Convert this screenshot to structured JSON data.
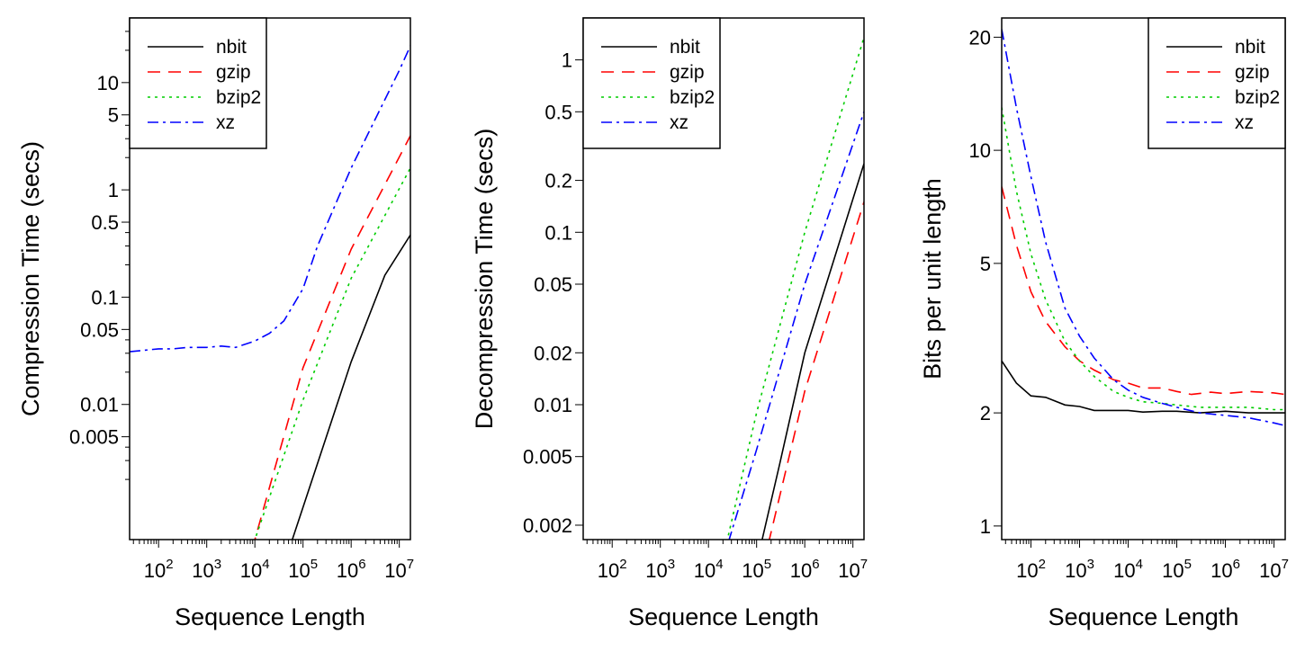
{
  "chart_data": [
    {
      "type": "line",
      "xlabel": "Sequence Length",
      "ylabel": "Compression Time (secs)",
      "x_scale": "log",
      "y_scale": "log",
      "xlim": [
        25,
        17000000
      ],
      "ylim": [
        0.00055,
        40
      ],
      "x_ticks": [
        {
          "v": 100,
          "b": "10",
          "e": "2"
        },
        {
          "v": 1000,
          "b": "10",
          "e": "3"
        },
        {
          "v": 10000,
          "b": "10",
          "e": "4"
        },
        {
          "v": 100000,
          "b": "10",
          "e": "5"
        },
        {
          "v": 1000000,
          "b": "10",
          "e": "6"
        },
        {
          "v": 10000000,
          "b": "10",
          "e": "7"
        }
      ],
      "y_ticks": [
        {
          "v": 0.005,
          "label": "0.005"
        },
        {
          "v": 0.01,
          "label": "0.01"
        },
        {
          "v": 0.05,
          "label": "0.05"
        },
        {
          "v": 0.1,
          "label": "0.1"
        },
        {
          "v": 0.5,
          "label": "0.5"
        },
        {
          "v": 1,
          "label": "1"
        },
        {
          "v": 5,
          "label": "5"
        },
        {
          "v": 10,
          "label": "10"
        }
      ],
      "y_minor_ticks": [
        0.002,
        0.003,
        0.004,
        0.02,
        0.03,
        0.04,
        0.2,
        0.3,
        0.4,
        2,
        3,
        4,
        20,
        30
      ],
      "legend": {
        "position": "top-left"
      },
      "series": [
        {
          "name": "nbit",
          "color": "#000000",
          "dash": "",
          "x": [
            25,
            60000,
            1000000,
            5000000,
            17000000
          ],
          "y": [
            0.0001,
            0.00055,
            0.025,
            0.16,
            0.38
          ]
        },
        {
          "name": "gzip",
          "color": "#ff0000",
          "dash": "14 9",
          "x": [
            8000,
            10000,
            100000,
            1000000,
            17000000
          ],
          "y": [
            0.00045,
            0.00055,
            0.022,
            0.28,
            3.2
          ]
        },
        {
          "name": "bzip2",
          "color": "#00cd00",
          "dash": "3 5",
          "x": [
            8000,
            10000,
            100000,
            1000000,
            17000000
          ],
          "y": [
            0.00045,
            0.00055,
            0.011,
            0.15,
            1.6
          ]
        },
        {
          "name": "xz",
          "color": "#0000ff",
          "dash": "12 5 3 5",
          "x": [
            25,
            50,
            100,
            200,
            400,
            1000,
            2000,
            4000,
            10000,
            20000,
            40000,
            100000,
            200000,
            1000000,
            10000000,
            17000000
          ],
          "y": [
            0.031,
            0.032,
            0.033,
            0.033,
            0.034,
            0.034,
            0.035,
            0.034,
            0.039,
            0.046,
            0.06,
            0.12,
            0.3,
            1.6,
            13,
            22
          ]
        }
      ]
    },
    {
      "type": "line",
      "xlabel": "Sequence Length",
      "ylabel": "Decompression Time (secs)",
      "x_scale": "log",
      "y_scale": "log",
      "xlim": [
        25,
        17000000
      ],
      "ylim": [
        0.00165,
        1.75
      ],
      "x_ticks": [
        {
          "v": 100,
          "b": "10",
          "e": "2"
        },
        {
          "v": 1000,
          "b": "10",
          "e": "3"
        },
        {
          "v": 10000,
          "b": "10",
          "e": "4"
        },
        {
          "v": 100000,
          "b": "10",
          "e": "5"
        },
        {
          "v": 1000000,
          "b": "10",
          "e": "6"
        },
        {
          "v": 10000000,
          "b": "10",
          "e": "7"
        }
      ],
      "y_ticks": [
        {
          "v": 0.002,
          "label": "0.002"
        },
        {
          "v": 0.005,
          "label": "0.005"
        },
        {
          "v": 0.01,
          "label": "0.01"
        },
        {
          "v": 0.02,
          "label": "0.02"
        },
        {
          "v": 0.05,
          "label": "0.05"
        },
        {
          "v": 0.1,
          "label": "0.1"
        },
        {
          "v": 0.2,
          "label": "0.2"
        },
        {
          "v": 0.5,
          "label": "0.5"
        },
        {
          "v": 1,
          "label": "1"
        }
      ],
      "y_minor_ticks": [],
      "legend": {
        "position": "top-left"
      },
      "series": [
        {
          "name": "nbit",
          "color": "#000000",
          "dash": "",
          "x": [
            100000,
            300000,
            1000000,
            17000000
          ],
          "y": [
            0.0012,
            0.0045,
            0.02,
            0.25
          ]
        },
        {
          "name": "gzip",
          "color": "#ff0000",
          "dash": "14 9",
          "x": [
            140000,
            1000000,
            17000000
          ],
          "y": [
            0.0012,
            0.012,
            0.15
          ]
        },
        {
          "name": "bzip2",
          "color": "#00cd00",
          "dash": "3 5",
          "x": [
            19000,
            100000,
            1000000,
            17000000
          ],
          "y": [
            0.0012,
            0.009,
            0.1,
            1.35
          ]
        },
        {
          "name": "xz",
          "color": "#0000ff",
          "dash": "12 5 3 5",
          "x": [
            19000,
            100000,
            1000000,
            17000000
          ],
          "y": [
            0.0012,
            0.0055,
            0.05,
            0.5
          ]
        }
      ]
    },
    {
      "type": "line",
      "xlabel": "Sequence Length",
      "ylabel": "Bits per unit length",
      "x_scale": "log",
      "y_scale": "log",
      "xlim": [
        25,
        17000000
      ],
      "ylim": [
        0.92,
        22.5
      ],
      "x_ticks": [
        {
          "v": 100,
          "b": "10",
          "e": "2"
        },
        {
          "v": 1000,
          "b": "10",
          "e": "3"
        },
        {
          "v": 10000,
          "b": "10",
          "e": "4"
        },
        {
          "v": 100000,
          "b": "10",
          "e": "5"
        },
        {
          "v": 1000000,
          "b": "10",
          "e": "6"
        },
        {
          "v": 10000000,
          "b": "10",
          "e": "7"
        }
      ],
      "y_ticks": [
        {
          "v": 1,
          "label": "1"
        },
        {
          "v": 2,
          "label": "2"
        },
        {
          "v": 5,
          "label": "5"
        },
        {
          "v": 10,
          "label": "10"
        },
        {
          "v": 20,
          "label": "20"
        }
      ],
      "y_minor_ticks": [],
      "legend": {
        "position": "top-right"
      },
      "series": [
        {
          "name": "nbit",
          "color": "#000000",
          "dash": "",
          "x": [
            25,
            50,
            100,
            200,
            500,
            1000,
            2000,
            5000,
            10000,
            20000,
            50000,
            100000,
            300000,
            1000000,
            3000000,
            10000000,
            17000000
          ],
          "y": [
            2.75,
            2.4,
            2.22,
            2.2,
            2.1,
            2.08,
            2.03,
            2.03,
            2.03,
            2.01,
            2.02,
            2.02,
            2.0,
            2.02,
            2.0,
            2.0,
            2.0
          ]
        },
        {
          "name": "gzip",
          "color": "#ff0000",
          "dash": "14 9",
          "x": [
            25,
            50,
            100,
            200,
            500,
            1000,
            2000,
            5000,
            10000,
            20000,
            50000,
            100000,
            200000,
            500000,
            1000000,
            3000000,
            10000000,
            17000000
          ],
          "y": [
            8.0,
            5.6,
            4.2,
            3.5,
            3.0,
            2.75,
            2.6,
            2.45,
            2.4,
            2.33,
            2.33,
            2.28,
            2.24,
            2.27,
            2.25,
            2.28,
            2.26,
            2.24
          ]
        },
        {
          "name": "bzip2",
          "color": "#00cd00",
          "dash": "3 5",
          "x": [
            25,
            50,
            100,
            200,
            500,
            1000,
            2000,
            5000,
            10000,
            20000,
            50000,
            100000,
            300000,
            1000000,
            3000000,
            10000000,
            17000000
          ],
          "y": [
            13.0,
            7.8,
            5.3,
            4.0,
            3.1,
            2.75,
            2.5,
            2.28,
            2.2,
            2.14,
            2.12,
            2.1,
            2.07,
            2.07,
            2.07,
            2.04,
            2.04
          ]
        },
        {
          "name": "xz",
          "color": "#0000ff",
          "dash": "12 5 3 5",
          "x": [
            25,
            50,
            100,
            200,
            500,
            1000,
            2000,
            5000,
            10000,
            20000,
            50000,
            100000,
            300000,
            1000000,
            3000000,
            10000000,
            17000000
          ],
          "y": [
            21.0,
            13.0,
            8.5,
            5.7,
            3.8,
            3.2,
            2.8,
            2.45,
            2.3,
            2.2,
            2.12,
            2.07,
            2.0,
            1.97,
            1.94,
            1.88,
            1.85
          ]
        }
      ]
    }
  ]
}
